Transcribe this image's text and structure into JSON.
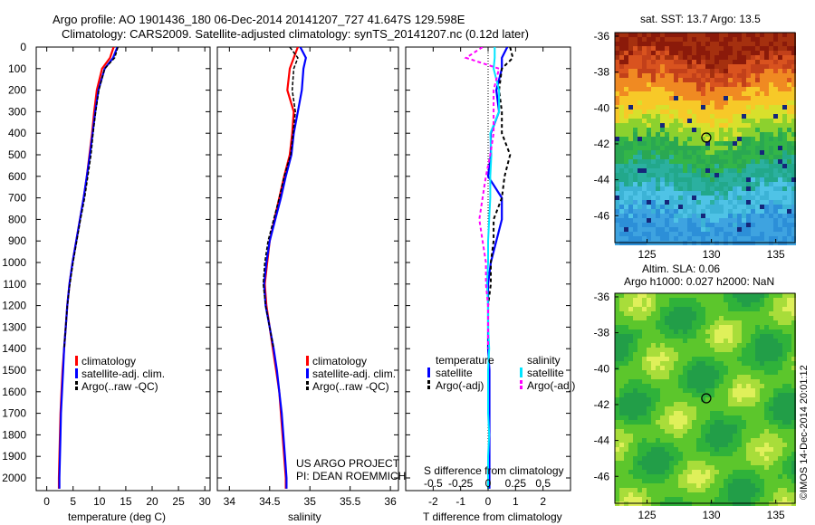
{
  "header": {
    "line1": "Argo profile: AO 1901436_180 06-Dec-2014 20141207_727 41.647S 129.598E",
    "line2": "Climatology: CARS2009. Satellite-adjusted climatology: synTS_20141207.nc (0.12d later)"
  },
  "depth_ticks": [
    "0",
    "100",
    "200",
    "300",
    "400",
    "500",
    "600",
    "700",
    "800",
    "900",
    "1000",
    "1100",
    "1200",
    "1300",
    "1400",
    "1500",
    "1600",
    "1700",
    "1800",
    "1900",
    "2000"
  ],
  "project": {
    "line1": "US ARGO PROJECT",
    "line2": "PI: DEAN ROEMMICH"
  },
  "sst_title": "sat. SST: 13.7 Argo: 13.5",
  "sla_title1": "Altim. SLA: 0.06",
  "sla_title2": "Argo h1000: 0.027 h2000: NaN",
  "credit": "©IMOS 14-Dec-2014 20:01:12",
  "legend": {
    "clim": "climatology",
    "sat": "satellite-adj. clim.",
    "argo": "Argo(..raw -QC)",
    "temp_header": "temperature",
    "sal_header": "salinity",
    "satellite": "satellite",
    "argo_adj": "Argo(-adj)"
  },
  "colors": {
    "clim": "#ff0000",
    "sat": "#0000ff",
    "argo": "#000000",
    "sal_sat": "#00e5ff",
    "sal_argo": "#ff00ff"
  },
  "chart_data": [
    {
      "type": "line",
      "xlabel": "temperature (deg C)",
      "ylabel": "",
      "xlim": [
        -2,
        31
      ],
      "ylim": [
        2050,
        0
      ],
      "x_ticks": [
        "0",
        "5",
        "10",
        "15",
        "20",
        "25",
        "30"
      ],
      "y": [
        0,
        50,
        100,
        200,
        300,
        400,
        500,
        600,
        700,
        800,
        900,
        1000,
        1100,
        1200,
        1300,
        1400,
        1500,
        1600,
        1700,
        1800,
        1900,
        2000,
        2050
      ],
      "series": [
        {
          "name": "climatology",
          "x": [
            12.7,
            12.0,
            10.5,
            9.5,
            9.0,
            8.6,
            8.1,
            7.6,
            7.0,
            6.3,
            5.6,
            4.9,
            4.3,
            3.9,
            3.6,
            3.3,
            3.0,
            2.8,
            2.6,
            2.5,
            2.4,
            2.3,
            2.3
          ]
        },
        {
          "name": "satellite-adj. clim.",
          "x": [
            13.4,
            12.6,
            11.0,
            9.8,
            9.2,
            8.7,
            8.2,
            7.6,
            7.0,
            6.3,
            5.6,
            4.9,
            4.3,
            3.9,
            3.6,
            3.3,
            3.1,
            2.9,
            2.7,
            2.6,
            2.5,
            2.4,
            2.4
          ]
        },
        {
          "name": "Argo(..raw -QC)",
          "x": [
            13.5,
            12.9,
            11.0,
            9.9,
            9.3,
            8.8,
            8.4,
            7.8,
            7.2,
            6.4,
            5.7,
            5.0,
            4.4,
            3.9,
            3.6,
            3.3
          ]
        }
      ]
    },
    {
      "type": "line",
      "xlabel": "salinity",
      "ylabel": "",
      "xlim": [
        33.85,
        36.1
      ],
      "ylim": [
        2050,
        0
      ],
      "x_ticks": [
        "34",
        "34.5",
        "35",
        "35.5",
        "36"
      ],
      "y": [
        0,
        50,
        100,
        200,
        300,
        400,
        500,
        600,
        700,
        800,
        900,
        1000,
        1100,
        1200,
        1300,
        1400,
        1500,
        1600,
        1700,
        1800,
        1900,
        2000,
        2050
      ],
      "series": [
        {
          "name": "climatology",
          "x": [
            34.85,
            34.8,
            34.75,
            34.72,
            34.8,
            34.78,
            34.75,
            34.68,
            34.62,
            34.56,
            34.5,
            34.47,
            34.44,
            34.46,
            34.5,
            34.54,
            34.58,
            34.62,
            34.64,
            34.66,
            34.68,
            34.7,
            34.7
          ]
        },
        {
          "name": "satellite-adj. clim.",
          "x": [
            34.88,
            34.95,
            34.92,
            34.9,
            34.85,
            34.8,
            34.77,
            34.7,
            34.64,
            34.57,
            34.5,
            34.46,
            34.43,
            34.45,
            34.5,
            34.55,
            34.59,
            34.62,
            34.65,
            34.67,
            34.69,
            34.71,
            34.71
          ]
        },
        {
          "name": "Argo(..raw -QC)",
          "x": [
            34.75,
            34.85,
            34.8,
            34.78,
            34.82,
            34.79,
            34.76,
            34.68,
            34.62,
            34.55,
            34.48,
            34.44,
            34.42,
            34.45,
            34.5,
            34.55
          ]
        }
      ]
    },
    {
      "type": "line",
      "xlabel": "T difference from climatology",
      "x2label": "S difference from climatology",
      "xlim": [
        -3,
        3
      ],
      "x_ticks": [
        "-2",
        "-1",
        "0",
        "1",
        "2"
      ],
      "x2_ticks": [
        "-0.5",
        "-0.25",
        "0",
        "0.25",
        "0.5"
      ],
      "ylim": [
        2050,
        0
      ],
      "y": [
        0,
        50,
        100,
        200,
        300,
        400,
        500,
        600,
        700,
        800,
        900,
        1000,
        1100,
        1200,
        1300,
        1400,
        1500,
        1600,
        1700,
        1800,
        1900,
        2000,
        2050
      ],
      "series": [
        {
          "name": "temperature satellite",
          "x": [
            0.7,
            0.5,
            0.5,
            0.3,
            0.4,
            0.1,
            0.1,
            0.0,
            0.5,
            0.5,
            0.3,
            0.1,
            0.0,
            0.0,
            0.0,
            0.0,
            0.05,
            0.05,
            0.05,
            0.05,
            0.05,
            0.05,
            0.05
          ]
        },
        {
          "name": "temperature Argo(-adj)",
          "x": [
            0.8,
            0.9,
            0.5,
            0.4,
            0.5,
            0.5,
            0.8,
            0.6,
            0.5,
            0.2,
            0.2,
            0.1,
            0.1,
            0.0,
            0.0,
            0.0
          ]
        },
        {
          "name": "salinity satellite",
          "x": [
            0.06,
            0.06,
            0.05,
            0.1,
            0.1,
            0.02,
            0.03,
            0.02,
            0.02,
            0.01,
            0.0,
            0.0,
            -0.01,
            0.0,
            0.0,
            0.01,
            0.0,
            0.0,
            0.0,
            0.01,
            0.0,
            0.0,
            0.0
          ]
        },
        {
          "name": "salinity Argo(-adj)",
          "x": [
            -0.05,
            -0.2,
            0.1,
            0.05,
            0.05,
            0.05,
            0.02,
            -0.02,
            -0.05,
            -0.08,
            -0.05,
            -0.02,
            -0.02,
            0.0,
            0.0,
            0.0
          ]
        }
      ]
    },
    {
      "type": "heatmap",
      "title": "sat. SST: 13.7 Argo: 13.5",
      "x_ticks": [
        "125",
        "130",
        "135"
      ],
      "y_ticks": [
        "-36",
        "-38",
        "-40",
        "-42",
        "-44",
        "-46"
      ],
      "xlim": [
        122.5,
        136.5
      ],
      "ylim": [
        -47.5,
        -35.8
      ],
      "marker": {
        "lon": 129.6,
        "lat": -41.65
      }
    },
    {
      "type": "heatmap",
      "title": "Altim. SLA: 0.06",
      "x_ticks": [
        "125",
        "130",
        "135"
      ],
      "y_ticks": [
        "-36",
        "-38",
        "-40",
        "-42",
        "-44",
        "-46"
      ],
      "xlim": [
        122.5,
        136.5
      ],
      "ylim": [
        -47.5,
        -35.8
      ],
      "marker": {
        "lon": 129.6,
        "lat": -41.65
      }
    }
  ]
}
